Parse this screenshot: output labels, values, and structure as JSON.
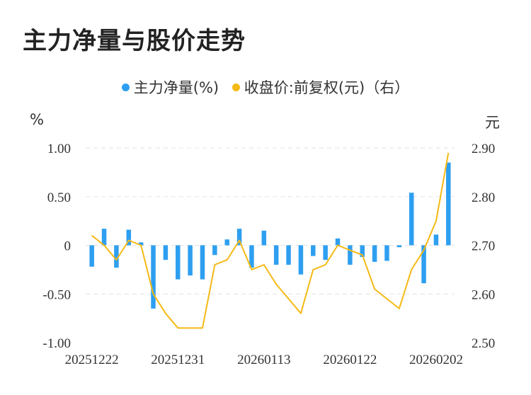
{
  "title": "主力净量与股价走势",
  "legend": {
    "main_label": "主力净量(%)",
    "price_label": "收盘价:前复权(元)（右）"
  },
  "units": {
    "left": "%",
    "right": "元"
  },
  "colors": {
    "bar": "#2e9ff0",
    "line": "#f5b914",
    "grid": "#e3e3e3"
  },
  "chart_data": {
    "type": "bar+line",
    "left_axis": {
      "ticks": [
        "1.00",
        "0.50",
        "0",
        "-0.50",
        "-1.00"
      ],
      "ylim": [
        -1.0,
        1.0
      ]
    },
    "right_axis": {
      "ticks": [
        "2.90",
        "2.80",
        "2.70",
        "2.60",
        "2.50"
      ],
      "ylim": [
        2.5,
        2.9
      ]
    },
    "x_tick_labels": [
      "20251222",
      "20251231",
      "20260113",
      "20260122",
      "20260202"
    ],
    "x_tick_indices": [
      0,
      7,
      14,
      21,
      28
    ],
    "series": [
      {
        "name": "主力净量(%)",
        "type": "bar",
        "values": [
          -0.22,
          0.17,
          -0.23,
          0.16,
          0.03,
          -0.65,
          -0.15,
          -0.35,
          -0.31,
          -0.35,
          -0.1,
          0.06,
          0.17,
          -0.23,
          0.15,
          -0.2,
          -0.2,
          -0.3,
          -0.11,
          -0.15,
          0.07,
          -0.2,
          -0.12,
          -0.17,
          -0.16,
          -0.02,
          0.54,
          -0.39,
          0.11,
          0.85
        ]
      },
      {
        "name": "收盘价:前复权(元)（右）",
        "type": "line",
        "values": [
          2.72,
          2.7,
          2.67,
          2.71,
          2.7,
          2.6,
          2.56,
          2.53,
          2.53,
          2.53,
          2.66,
          2.67,
          2.71,
          2.65,
          2.66,
          2.62,
          2.59,
          2.56,
          2.65,
          2.66,
          2.7,
          2.69,
          2.68,
          2.61,
          2.59,
          2.57,
          2.65,
          2.69,
          2.75,
          2.89
        ]
      }
    ]
  }
}
